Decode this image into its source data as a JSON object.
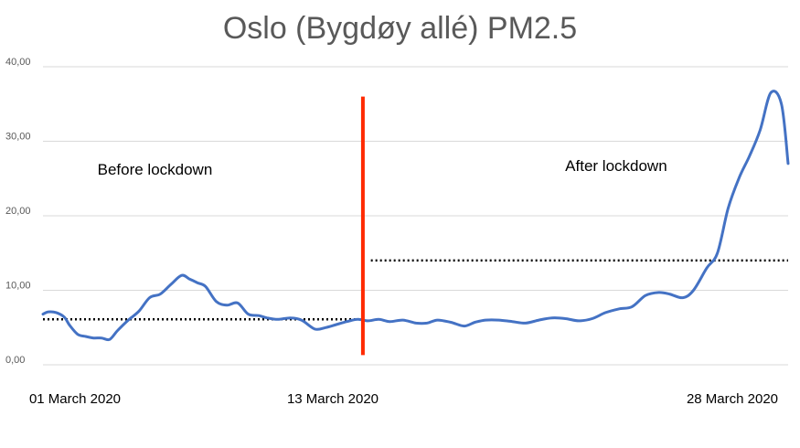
{
  "chart_data": {
    "type": "line",
    "title": "Oslo (Bygdøy allé) PM2.5",
    "xlabel": "",
    "ylabel": "",
    "ylim": [
      0,
      40
    ],
    "yticks": [
      "0,00",
      "10,00",
      "20,00",
      "30,00",
      "40,00"
    ],
    "xtick_labels": [
      "01 March 2020",
      "13 March 2020",
      "28 March 2020"
    ],
    "grid": true,
    "legend": "none",
    "line_color": "#4472C4",
    "series": [
      {
        "x": [
          1.0,
          1.2,
          1.5,
          1.8,
          2.0,
          2.3,
          2.6,
          2.9,
          3.2,
          3.5,
          3.8,
          4.2,
          4.6,
          5.0,
          5.4,
          5.8,
          6.2,
          6.5,
          6.8,
          7.1,
          7.5,
          7.9,
          8.3,
          8.7,
          9.1,
          9.4,
          9.8,
          10.3,
          10.7,
          11.2,
          11.6,
          12.0,
          12.4,
          12.8,
          13.2,
          13.6,
          14.0,
          14.5,
          15.0,
          15.4,
          15.8,
          16.3,
          16.8,
          17.2,
          17.6,
          18.1,
          18.6,
          19.1,
          19.6,
          20.1,
          20.6,
          21.1,
          21.6,
          22.1,
          22.6,
          23.1,
          23.6,
          24.1,
          24.5,
          25.0,
          25.4,
          25.9,
          26.3,
          26.7,
          27.1,
          27.5,
          27.9,
          28.3,
          28.7,
          28.95
        ],
        "values": [
          6.8,
          7.1,
          7.0,
          6.4,
          5.3,
          4.1,
          3.8,
          3.6,
          3.6,
          3.4,
          4.6,
          6.0,
          7.2,
          9.0,
          9.5,
          10.8,
          12.0,
          11.5,
          11.0,
          10.5,
          8.5,
          8.0,
          8.3,
          6.8,
          6.6,
          6.3,
          6.1,
          6.3,
          6.0,
          4.8,
          5.0,
          5.4,
          5.8,
          6.1,
          5.9,
          6.1,
          5.8,
          6.0,
          5.6,
          5.6,
          6.0,
          5.7,
          5.2,
          5.7,
          6.0,
          6.0,
          5.8,
          5.6,
          6.0,
          6.3,
          6.2,
          5.9,
          6.2,
          7.0,
          7.5,
          7.8,
          9.3,
          9.7,
          9.5,
          9.0,
          10.0,
          13.0,
          15.0,
          21.0,
          25.0,
          28.0,
          31.5,
          36.5,
          35.0,
          27.0
        ]
      }
    ],
    "annotations": [
      {
        "text": "Before lockdown",
        "x": 5.2,
        "y": 25.5
      },
      {
        "text": "After lockdown",
        "x": 22.5,
        "y": 26.0
      }
    ],
    "lockdown_line": {
      "x": 13.0,
      "ymin": 1.3,
      "ymax": 36.0,
      "color": "#FF2A00"
    },
    "mean_lines": [
      {
        "label": "before",
        "x0": 1.0,
        "x1": 12.9,
        "value": 6.1
      },
      {
        "label": "after",
        "x0": 13.3,
        "x1": 28.95,
        "value": 14.0
      }
    ]
  }
}
